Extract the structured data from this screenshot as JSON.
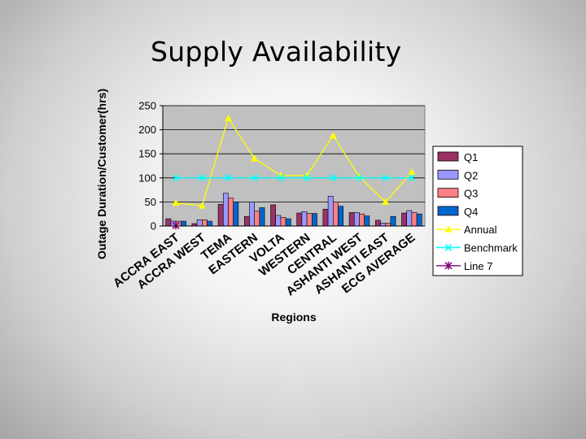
{
  "slide": {
    "title": "Supply Availability"
  },
  "chart_data": {
    "type": "bar",
    "ylabel": "Outage Duration/Customer(hrs)",
    "xlabel": "Regions",
    "ylim": [
      0,
      250
    ],
    "yticks": [
      0,
      50,
      100,
      150,
      200,
      250
    ],
    "grid": true,
    "legend_position": "right",
    "categories": [
      "ACCRA EAST",
      "ACCRA WEST",
      "TEMA",
      "EASTERN",
      "VOLTA",
      "WESTERN",
      "CENTRAL",
      "ASHANTI WEST",
      "ASHANTI EAST",
      "ECG AVERAGE"
    ],
    "bar_series": [
      {
        "name": "Q1",
        "color": "#993366",
        "values": [
          15,
          5,
          45,
          20,
          44,
          27,
          35,
          28,
          12,
          27
        ]
      },
      {
        "name": "Q2",
        "color": "#9999ff",
        "values": [
          10,
          13,
          68,
          50,
          22,
          30,
          62,
          28,
          6,
          32
        ]
      },
      {
        "name": "Q3",
        "color": "#ff8080",
        "values": [
          10,
          13,
          58,
          31,
          18,
          26,
          50,
          25,
          6,
          28
        ]
      },
      {
        "name": "Q4",
        "color": "#0066cc",
        "values": [
          10,
          10,
          50,
          38,
          15,
          26,
          41,
          21,
          20,
          25
        ]
      }
    ],
    "line_series": [
      {
        "name": "Annual",
        "color": "#ffff00",
        "marker": "triangle",
        "values": [
          48,
          42,
          224,
          140,
          105,
          105,
          188,
          102,
          50,
          112
        ]
      },
      {
        "name": "Benchmark",
        "color": "#00ffff",
        "marker": "x",
        "values": [
          100,
          100,
          100,
          100,
          100,
          100,
          100,
          100,
          100,
          100
        ]
      },
      {
        "name": "Line 7",
        "color": "#800080",
        "marker": "star",
        "values": [
          1,
          null,
          null,
          null,
          null,
          null,
          null,
          null,
          null,
          null
        ]
      }
    ]
  }
}
